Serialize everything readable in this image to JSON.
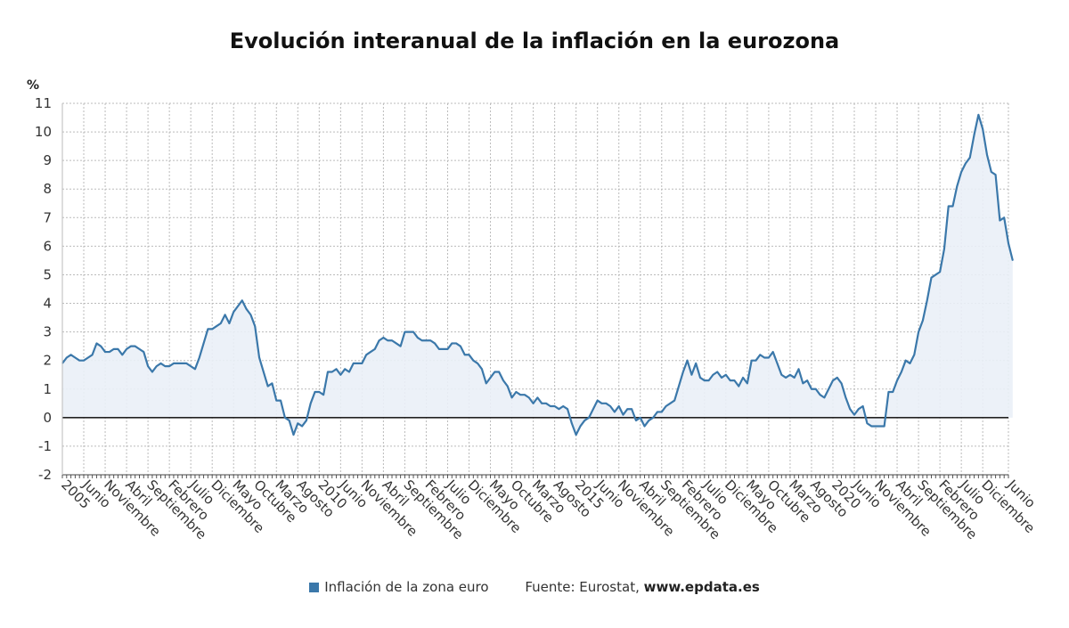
{
  "title": "Evolución interanual de la inflación en la eurozona",
  "legend": {
    "series_label": "Inflación de la zona euro",
    "source_prefix": "Fuente: Eurostat, ",
    "source_link": "www.epdata.es"
  },
  "colors": {
    "line": "#3b78aa",
    "fill": "#eaf0f7",
    "grid": "#bbbbbb",
    "zero": "#222222"
  },
  "chart_data": {
    "type": "area",
    "unit_label": "%",
    "ylim": [
      -2,
      11
    ],
    "yticks": [
      -2,
      -1,
      0,
      1,
      2,
      3,
      4,
      5,
      6,
      7,
      8,
      9,
      10,
      11
    ],
    "grid": true,
    "x_start": "2005-01",
    "x_end": "2023-06",
    "xtick_labels": [
      {
        "date": "2005-01",
        "label": "2005"
      },
      {
        "date": "2005-06",
        "label": "Junio"
      },
      {
        "date": "2005-11",
        "label": "Noviembre"
      },
      {
        "date": "2006-04",
        "label": "Abril"
      },
      {
        "date": "2006-09",
        "label": "Septiembre"
      },
      {
        "date": "2007-02",
        "label": "Febrero"
      },
      {
        "date": "2007-07",
        "label": "Julio"
      },
      {
        "date": "2007-12",
        "label": "Diciembre"
      },
      {
        "date": "2008-05",
        "label": "Mayo"
      },
      {
        "date": "2008-10",
        "label": "Octubre"
      },
      {
        "date": "2009-03",
        "label": "Marzo"
      },
      {
        "date": "2009-08",
        "label": "Agosto"
      },
      {
        "date": "2010-01",
        "label": "2010"
      },
      {
        "date": "2010-06",
        "label": "Junio"
      },
      {
        "date": "2010-11",
        "label": "Noviembre"
      },
      {
        "date": "2011-04",
        "label": "Abril"
      },
      {
        "date": "2011-09",
        "label": "Septiembre"
      },
      {
        "date": "2012-02",
        "label": "Febrero"
      },
      {
        "date": "2012-07",
        "label": "Julio"
      },
      {
        "date": "2012-12",
        "label": "Diciembre"
      },
      {
        "date": "2013-05",
        "label": "Mayo"
      },
      {
        "date": "2013-10",
        "label": "Octubre"
      },
      {
        "date": "2014-03",
        "label": "Marzo"
      },
      {
        "date": "2014-08",
        "label": "Agosto"
      },
      {
        "date": "2015-01",
        "label": "2015"
      },
      {
        "date": "2015-06",
        "label": "Junio"
      },
      {
        "date": "2015-11",
        "label": "Noviembre"
      },
      {
        "date": "2016-04",
        "label": "Abril"
      },
      {
        "date": "2016-09",
        "label": "Septiembre"
      },
      {
        "date": "2017-02",
        "label": "Febrero"
      },
      {
        "date": "2017-07",
        "label": "Julio"
      },
      {
        "date": "2017-12",
        "label": "Diciembre"
      },
      {
        "date": "2018-05",
        "label": "Mayo"
      },
      {
        "date": "2018-10",
        "label": "Octubre"
      },
      {
        "date": "2019-03",
        "label": "Marzo"
      },
      {
        "date": "2019-08",
        "label": "Agosto"
      },
      {
        "date": "2020-01",
        "label": "2020"
      },
      {
        "date": "2020-06",
        "label": "Junio"
      },
      {
        "date": "2020-11",
        "label": "Noviembre"
      },
      {
        "date": "2021-04",
        "label": "Abril"
      },
      {
        "date": "2021-09",
        "label": "Septiembre"
      },
      {
        "date": "2022-02",
        "label": "Febrero"
      },
      {
        "date": "2022-07",
        "label": "Julio"
      },
      {
        "date": "2022-12",
        "label": "Diciembre"
      },
      {
        "date": "2023-06",
        "label": "Junio"
      }
    ],
    "series": [
      {
        "name": "Inflación de la zona euro",
        "values": [
          1.9,
          2.1,
          2.2,
          2.1,
          2.0,
          2.0,
          2.1,
          2.2,
          2.6,
          2.5,
          2.3,
          2.3,
          2.4,
          2.4,
          2.2,
          2.4,
          2.5,
          2.5,
          2.4,
          2.3,
          1.8,
          1.6,
          1.8,
          1.9,
          1.8,
          1.8,
          1.9,
          1.9,
          1.9,
          1.9,
          1.8,
          1.7,
          2.1,
          2.6,
          3.1,
          3.1,
          3.2,
          3.3,
          3.6,
          3.3,
          3.7,
          3.9,
          4.1,
          3.8,
          3.6,
          3.2,
          2.1,
          1.6,
          1.1,
          1.2,
          0.6,
          0.6,
          0.0,
          -0.1,
          -0.6,
          -0.2,
          -0.3,
          -0.1,
          0.5,
          0.9,
          0.9,
          0.8,
          1.6,
          1.6,
          1.7,
          1.5,
          1.7,
          1.6,
          1.9,
          1.9,
          1.9,
          2.2,
          2.3,
          2.4,
          2.7,
          2.8,
          2.7,
          2.7,
          2.6,
          2.5,
          3.0,
          3.0,
          3.0,
          2.8,
          2.7,
          2.7,
          2.7,
          2.6,
          2.4,
          2.4,
          2.4,
          2.6,
          2.6,
          2.5,
          2.2,
          2.2,
          2.0,
          1.9,
          1.7,
          1.2,
          1.4,
          1.6,
          1.6,
          1.3,
          1.1,
          0.7,
          0.9,
          0.8,
          0.8,
          0.7,
          0.5,
          0.7,
          0.5,
          0.5,
          0.4,
          0.4,
          0.3,
          0.4,
          0.3,
          -0.2,
          -0.6,
          -0.3,
          -0.1,
          0.0,
          0.3,
          0.6,
          0.5,
          0.5,
          0.4,
          0.2,
          0.4,
          0.1,
          0.3,
          0.3,
          -0.1,
          0.0,
          -0.3,
          -0.1,
          0.0,
          0.2,
          0.2,
          0.4,
          0.5,
          0.6,
          1.1,
          1.6,
          2.0,
          1.5,
          1.9,
          1.4,
          1.3,
          1.3,
          1.5,
          1.6,
          1.4,
          1.5,
          1.3,
          1.3,
          1.1,
          1.4,
          1.2,
          2.0,
          2.0,
          2.2,
          2.1,
          2.1,
          2.3,
          1.9,
          1.5,
          1.4,
          1.5,
          1.4,
          1.7,
          1.2,
          1.3,
          1.0,
          1.0,
          0.8,
          0.7,
          1.0,
          1.3,
          1.4,
          1.2,
          0.7,
          0.3,
          0.1,
          0.3,
          0.4,
          -0.2,
          -0.3,
          -0.3,
          -0.3,
          -0.3,
          0.9,
          0.9,
          1.3,
          1.6,
          2.0,
          1.9,
          2.2,
          3.0,
          3.4,
          4.1,
          4.9,
          5.0,
          5.1,
          5.9,
          7.4,
          7.4,
          8.1,
          8.6,
          8.9,
          9.1,
          9.9,
          10.6,
          10.1,
          9.2,
          8.6,
          8.5,
          6.9,
          7.0,
          6.1,
          5.5
        ]
      }
    ]
  }
}
